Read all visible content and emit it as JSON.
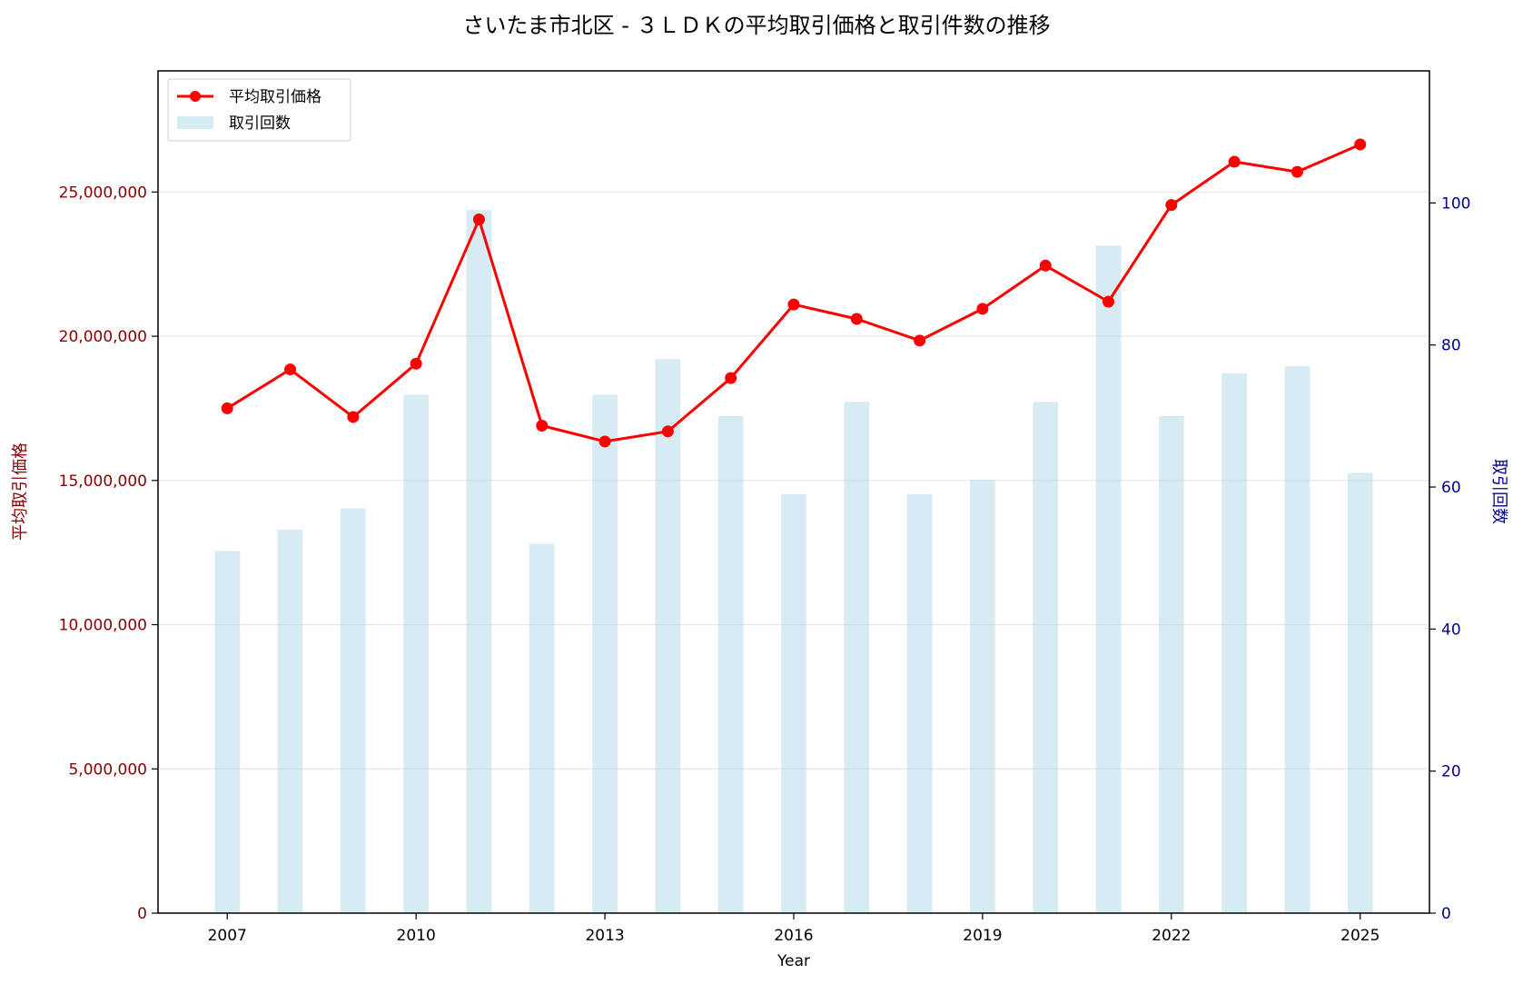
{
  "chart_data": {
    "type": "bar+line",
    "title": "さいたま市北区 - ３ＬＤＫの平均取引価格と取引件数の推移",
    "xlabel": "Year",
    "ylabel_left": "平均取引価格",
    "ylabel_right": "取引回数",
    "x": [
      2007,
      2008,
      2009,
      2010,
      2011,
      2012,
      2013,
      2014,
      2015,
      2016,
      2017,
      2018,
      2019,
      2020,
      2021,
      2022,
      2023,
      2024,
      2025
    ],
    "x_ticks": [
      "2007",
      "2010",
      "2013",
      "2016",
      "2019",
      "2022",
      "2025"
    ],
    "xlim": [
      2005.9,
      2026.1
    ],
    "series": [
      {
        "name": "平均取引価格",
        "type": "line",
        "axis": "left",
        "color": "#ff0000",
        "values": [
          17500000,
          18850000,
          17200000,
          19050000,
          24050000,
          16900000,
          16350000,
          16700000,
          18550000,
          21100000,
          20600000,
          19850000,
          20950000,
          22450000,
          21200000,
          24550000,
          26050000,
          25700000,
          26650000
        ]
      },
      {
        "name": "取引回数",
        "type": "bar",
        "axis": "right",
        "color": "#add8e6",
        "values": [
          51,
          54,
          57,
          73,
          99,
          52,
          73,
          78,
          70,
          59,
          72,
          59,
          61,
          72,
          94,
          70,
          76,
          77,
          62
        ]
      }
    ],
    "y_left": {
      "ylim": [
        0,
        29200000
      ],
      "ticks": [
        0,
        5000000,
        10000000,
        15000000,
        20000000,
        25000000
      ],
      "tick_labels": [
        "0",
        "5,000,000",
        "10,000,000",
        "15,000,000",
        "20,000,000",
        "25,000,000"
      ],
      "color": "#8b0000"
    },
    "y_right": {
      "ylim": [
        0,
        118.6
      ],
      "ticks": [
        0,
        20,
        40,
        60,
        80,
        100
      ],
      "tick_labels": [
        "0",
        "20",
        "40",
        "60",
        "80",
        "100"
      ],
      "color": "#00008b"
    },
    "grid": "horizontal",
    "legend": "top-left"
  }
}
